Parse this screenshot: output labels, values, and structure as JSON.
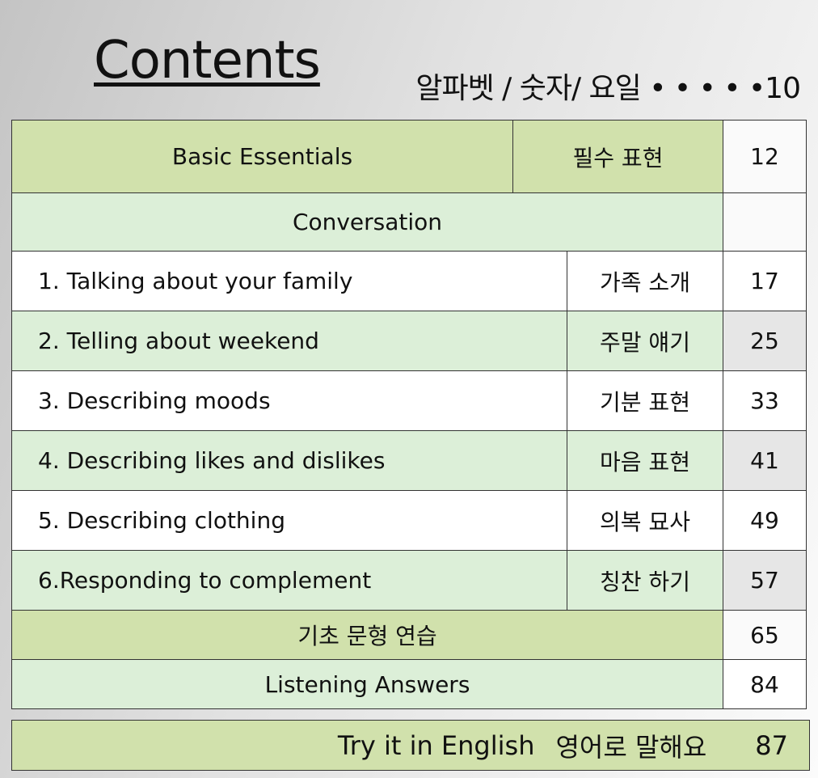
{
  "title": "Contents",
  "subtitle": "알파벳 / 숫자/ 요일 • • • • •10",
  "colors": {
    "dark_green": "#d1e1ac",
    "light_green": "#dcefd8",
    "gray": "#e6e6e6"
  },
  "basic": {
    "label": "Basic Essentials",
    "korean": "필수 표현",
    "page": "12"
  },
  "conversation": {
    "label": "Conversation"
  },
  "lessons": [
    {
      "label": "1. Talking about your family",
      "korean": "가족 소개",
      "page": "17"
    },
    {
      "label": "2. Telling about weekend",
      "korean": "주말 얘기",
      "page": "25"
    },
    {
      "label": "3. Describing moods",
      "korean": "기분 표현",
      "page": "33"
    },
    {
      "label": "4. Describing likes and dislikes",
      "korean": "마음 표현",
      "page": "41"
    },
    {
      "label": "5. Describing clothing",
      "korean": "의복 묘사",
      "page": "49"
    },
    {
      "label": "6.Responding to complement",
      "korean": "칭찬 하기",
      "page": "57"
    }
  ],
  "practice": {
    "label": "기초 문형 연습",
    "page": "65"
  },
  "listening": {
    "label": "Listening  Answers",
    "page": "84"
  },
  "try": {
    "label": "Try it in English",
    "korean": "영어로 말해요",
    "page": "87"
  }
}
